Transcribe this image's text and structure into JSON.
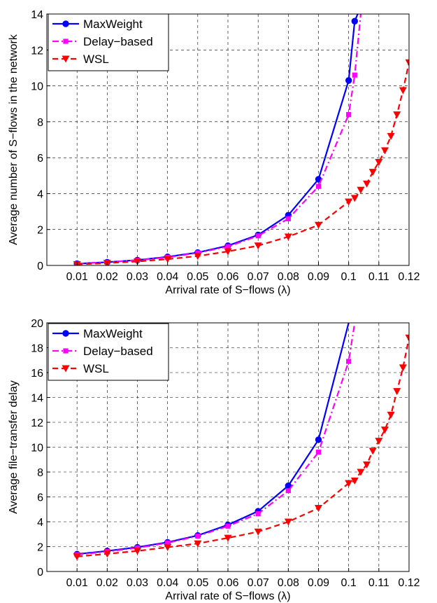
{
  "chart_data": [
    {
      "type": "line",
      "title": "",
      "xlabel": "Arrival rate of S−flows (λ)",
      "ylabel": "Average number of S−flows in the network",
      "xlim": [
        0.0,
        0.12
      ],
      "ylim": [
        0,
        14
      ],
      "xticks": [
        0.01,
        0.02,
        0.03,
        0.04,
        0.05,
        0.06,
        0.07,
        0.08,
        0.09,
        0.1,
        0.11,
        0.12
      ],
      "xtick_labels": [
        "0.01",
        "0.02",
        "0.03",
        "0.04",
        "0.05",
        "0.06",
        "0.07",
        "0.08",
        "0.09",
        "0.1",
        "0.11",
        "0.12"
      ],
      "yticks": [
        0,
        2,
        4,
        6,
        8,
        10,
        12,
        14
      ],
      "ytick_labels": [
        "0",
        "2",
        "4",
        "6",
        "8",
        "10",
        "12",
        "14"
      ],
      "grid": true,
      "legend": "top-left",
      "series": [
        {
          "name": "MaxWeight",
          "color": "#0000ff",
          "line": "solid",
          "marker": "circle",
          "x": [
            0.01,
            0.02,
            0.03,
            0.04,
            0.05,
            0.06,
            0.07,
            0.08,
            0.09,
            0.1,
            0.102,
            0.103
          ],
          "y": [
            0.1,
            0.18,
            0.3,
            0.48,
            0.72,
            1.1,
            1.7,
            2.8,
            4.8,
            10.3,
            13.6,
            14.0
          ],
          "marker_count": 11
        },
        {
          "name": "Delay−based",
          "color": "#ff00ff",
          "line": "dashdot",
          "marker": "square",
          "x": [
            0.01,
            0.02,
            0.03,
            0.04,
            0.05,
            0.06,
            0.07,
            0.08,
            0.09,
            0.1,
            0.102,
            0.104
          ],
          "y": [
            0.1,
            0.18,
            0.29,
            0.45,
            0.7,
            1.05,
            1.65,
            2.6,
            4.4,
            8.4,
            10.6,
            14.0
          ],
          "marker_count": 11
        },
        {
          "name": "WSL",
          "color": "#ff0000",
          "line": "dashed",
          "marker": "triangle-down",
          "x": [
            0.01,
            0.02,
            0.03,
            0.04,
            0.05,
            0.06,
            0.07,
            0.08,
            0.09,
            0.1,
            0.102,
            0.104,
            0.106,
            0.108,
            0.11,
            0.112,
            0.114,
            0.116,
            0.118,
            0.12
          ],
          "y": [
            0.06,
            0.13,
            0.22,
            0.35,
            0.52,
            0.78,
            1.1,
            1.6,
            2.25,
            3.55,
            3.75,
            4.2,
            4.55,
            5.2,
            5.75,
            6.4,
            7.2,
            8.4,
            9.75,
            11.3
          ]
        }
      ]
    },
    {
      "type": "line",
      "title": "",
      "xlabel": "Arrival rate of S−flows (λ)",
      "ylabel": "Average file−transfer delay",
      "xlim": [
        0.0,
        0.12
      ],
      "ylim": [
        0,
        20
      ],
      "xticks": [
        0.01,
        0.02,
        0.03,
        0.04,
        0.05,
        0.06,
        0.07,
        0.08,
        0.09,
        0.1,
        0.11,
        0.12
      ],
      "xtick_labels": [
        "0.01",
        "0.02",
        "0.03",
        "0.04",
        "0.05",
        "0.06",
        "0.07",
        "0.08",
        "0.09",
        "0.1",
        "0.11",
        "0.12"
      ],
      "yticks": [
        0,
        2,
        4,
        6,
        8,
        10,
        12,
        14,
        16,
        18,
        20
      ],
      "ytick_labels": [
        "0",
        "2",
        "4",
        "6",
        "8",
        "10",
        "12",
        "14",
        "16",
        "18",
        "20"
      ],
      "grid": true,
      "legend": "top-left",
      "series": [
        {
          "name": "MaxWeight",
          "color": "#0000ff",
          "line": "solid",
          "marker": "circle",
          "x": [
            0.01,
            0.02,
            0.03,
            0.04,
            0.05,
            0.06,
            0.07,
            0.08,
            0.09,
            0.1
          ],
          "y": [
            1.4,
            1.65,
            1.95,
            2.35,
            2.9,
            3.75,
            4.85,
            6.9,
            10.6,
            20.0
          ],
          "marker_count": 9
        },
        {
          "name": "Delay−based",
          "color": "#ff00ff",
          "line": "dashdot",
          "marker": "square",
          "x": [
            0.01,
            0.02,
            0.03,
            0.04,
            0.05,
            0.06,
            0.07,
            0.08,
            0.09,
            0.1,
            0.102
          ],
          "y": [
            1.35,
            1.6,
            1.9,
            2.3,
            2.85,
            3.65,
            4.65,
            6.5,
            9.6,
            16.9,
            20.0
          ],
          "marker_count": 10
        },
        {
          "name": "WSL",
          "color": "#ff0000",
          "line": "dashed",
          "marker": "triangle-down",
          "x": [
            0.01,
            0.02,
            0.03,
            0.04,
            0.05,
            0.06,
            0.07,
            0.08,
            0.09,
            0.1,
            0.102,
            0.104,
            0.106,
            0.108,
            0.11,
            0.112,
            0.114,
            0.116,
            0.118,
            0.12
          ],
          "y": [
            1.2,
            1.42,
            1.65,
            1.95,
            2.25,
            2.7,
            3.2,
            4.0,
            5.1,
            7.1,
            7.3,
            8.0,
            8.6,
            9.7,
            10.5,
            11.4,
            12.6,
            14.5,
            16.4,
            18.8
          ]
        }
      ]
    }
  ]
}
